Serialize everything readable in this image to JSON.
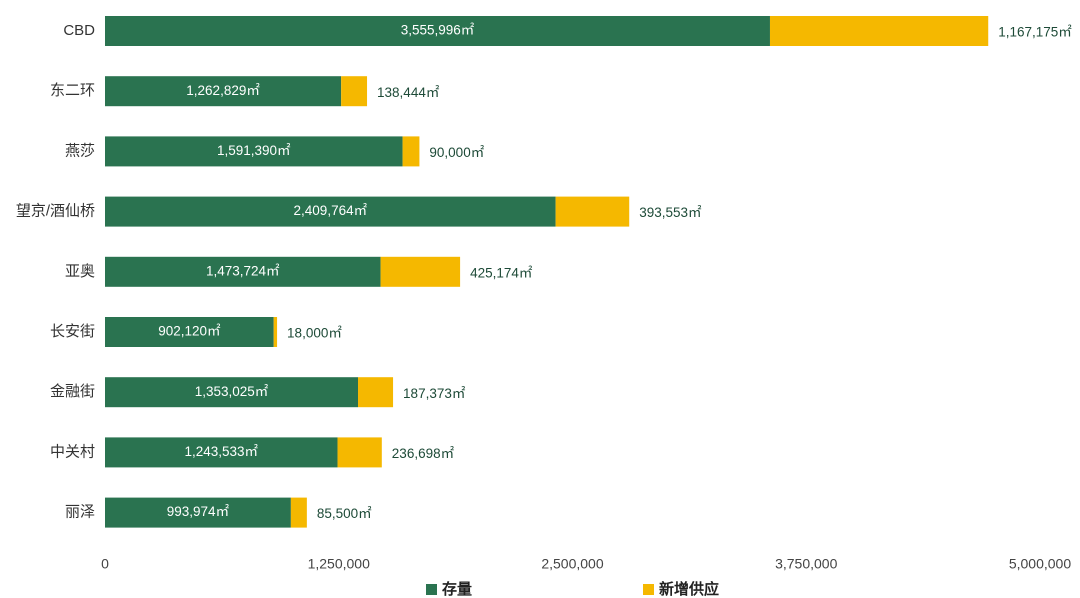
{
  "chart_data": {
    "type": "bar",
    "orientation": "horizontal",
    "stacked": true,
    "categories": [
      "CBD",
      "东二环",
      "燕莎",
      "望京/酒仙桥",
      "亚奥",
      "长安街",
      "金融街",
      "中关村",
      "丽泽"
    ],
    "series": [
      {
        "name": "存量",
        "color": "#2a7350",
        "values": [
          3555996,
          1262829,
          1591390,
          2409764,
          1473724,
          902120,
          1353025,
          1243533,
          993974
        ],
        "value_labels": [
          "3,555,996㎡",
          "1,262,829㎡",
          "1,591,390㎡",
          "2,409,764㎡",
          "1,473,724㎡",
          "902,120㎡",
          "1,353,025㎡",
          "1,243,533㎡",
          "993,974㎡"
        ]
      },
      {
        "name": "新增供应",
        "color": "#f5b800",
        "values": [
          1167175,
          138444,
          90000,
          393553,
          425174,
          18000,
          187373,
          236698,
          85500
        ],
        "value_labels": [
          "1,167,175㎡",
          "138,444㎡",
          "90,000㎡",
          "393,553㎡",
          "425,174㎡",
          "18,000㎡",
          "187,373㎡",
          "236,698㎡",
          "85,500㎡"
        ]
      }
    ],
    "xlim": [
      0,
      5000000
    ],
    "xticks": [
      0,
      {
        "value": 1250000,
        "label": "1,250,000"
      },
      {
        "value": 2500000,
        "label": "2,500,000"
      },
      {
        "value": 3750000,
        "label": "3,750,000"
      },
      {
        "value": 5000000,
        "label": "5,000,000"
      }
    ],
    "grid": false,
    "legend": "bottom"
  }
}
